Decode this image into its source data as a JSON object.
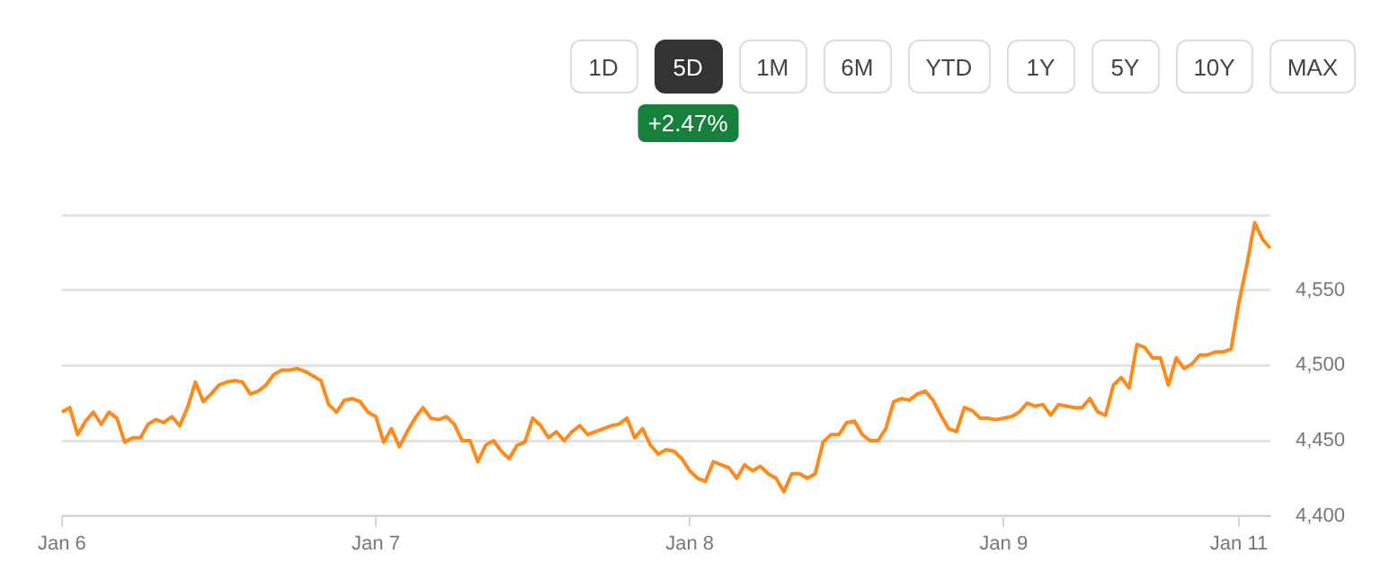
{
  "chart_data": {
    "type": "line",
    "annotations": [
      "1D",
      "5D",
      "1M",
      "6M",
      "YTD",
      "1Y",
      "5Y",
      "10Y",
      "MAX",
      "+2.47%"
    ],
    "categories": [
      "Jan 6",
      null,
      null,
      null,
      null,
      null,
      null,
      null,
      null,
      null,
      null,
      null,
      null,
      null,
      null,
      null,
      null,
      null,
      null,
      null,
      null,
      null,
      null,
      null,
      null,
      null,
      null,
      null,
      null,
      null,
      null,
      null,
      null,
      null,
      null,
      null,
      null,
      null,
      null,
      null,
      "Jan 7",
      null,
      null,
      null,
      null,
      null,
      null,
      null,
      null,
      null,
      null,
      null,
      null,
      null,
      null,
      null,
      null,
      null,
      null,
      null,
      null,
      null,
      null,
      null,
      null,
      null,
      null,
      null,
      null,
      null,
      null,
      null,
      null,
      null,
      null,
      null,
      null,
      null,
      null,
      null,
      "Jan 8",
      null,
      null,
      null,
      null,
      null,
      null,
      null,
      null,
      null,
      null,
      null,
      null,
      null,
      null,
      null,
      null,
      null,
      null,
      null,
      null,
      null,
      null,
      null,
      null,
      null,
      null,
      null,
      null,
      null,
      null,
      null,
      null,
      null,
      null,
      null,
      null,
      null,
      null,
      null,
      "Jan 9",
      null,
      null,
      null,
      null,
      null,
      null,
      null,
      null,
      null,
      null,
      null,
      null,
      null,
      null,
      null,
      null,
      null,
      null,
      null,
      null,
      null,
      null,
      null,
      null,
      null,
      null,
      null,
      null,
      null,
      "Jan 11",
      null,
      null,
      null,
      null
    ],
    "series": [
      {
        "color": "#ff8a1c",
        "values": [
          4469,
          4472,
          4454,
          4463,
          4469,
          4461,
          4469,
          4465,
          4449,
          4452,
          4452,
          4461,
          4464,
          4462,
          4466,
          4460,
          4472,
          4489,
          4476,
          4481,
          4487,
          4489,
          4490,
          4489,
          4481,
          4483,
          4487,
          4494,
          4497,
          4497,
          4498,
          4496,
          4493,
          4490,
          4474,
          4469,
          4477,
          4478,
          4476,
          4469,
          4466,
          4449,
          4458,
          4446,
          4456,
          4465,
          4472,
          4465,
          4464,
          4466,
          4461,
          4450,
          4450,
          4436,
          4447,
          4450,
          4443,
          4438,
          4447,
          4449,
          4465,
          4460,
          4452,
          4456,
          4450,
          4456,
          4460,
          4454,
          4456,
          4458,
          4460,
          4461,
          4465,
          4452,
          4458,
          4447,
          4441,
          4444,
          4443,
          4438,
          4430,
          4425,
          4423,
          4436,
          4434,
          4432,
          4425,
          4434,
          4430,
          4433,
          4428,
          4425,
          4416,
          4428,
          4428,
          4425,
          4428,
          4449,
          4454,
          4454,
          4462,
          4463,
          4454,
          4450,
          4450,
          4458,
          4476,
          4478,
          4477,
          4481,
          4483,
          4477,
          4467,
          4458,
          4456,
          4472,
          4470,
          4465,
          4465,
          4464,
          4465,
          4466,
          4469,
          4475,
          4473,
          4474,
          4467,
          4474,
          4473,
          4472,
          4472,
          4478,
          4469,
          4467,
          4487,
          4492,
          4485,
          4514,
          4512,
          4505,
          4505,
          4487,
          4505,
          4498,
          4501,
          4507,
          4507,
          4509,
          4509,
          4511,
          4542,
          4567,
          4595,
          4584,
          4578
        ]
      }
    ],
    "ylim": [
      4400,
      4600
    ],
    "yticks": [
      {
        "value": 4400,
        "label": "4,400"
      },
      {
        "value": 4450,
        "label": "4,450"
      },
      {
        "value": 4500,
        "label": "4,500"
      },
      {
        "value": 4550,
        "label": "4,550"
      },
      {
        "value": 4600,
        "label": null
      }
    ],
    "grid": "y",
    "marker": "none",
    "line_style": "solid"
  }
}
